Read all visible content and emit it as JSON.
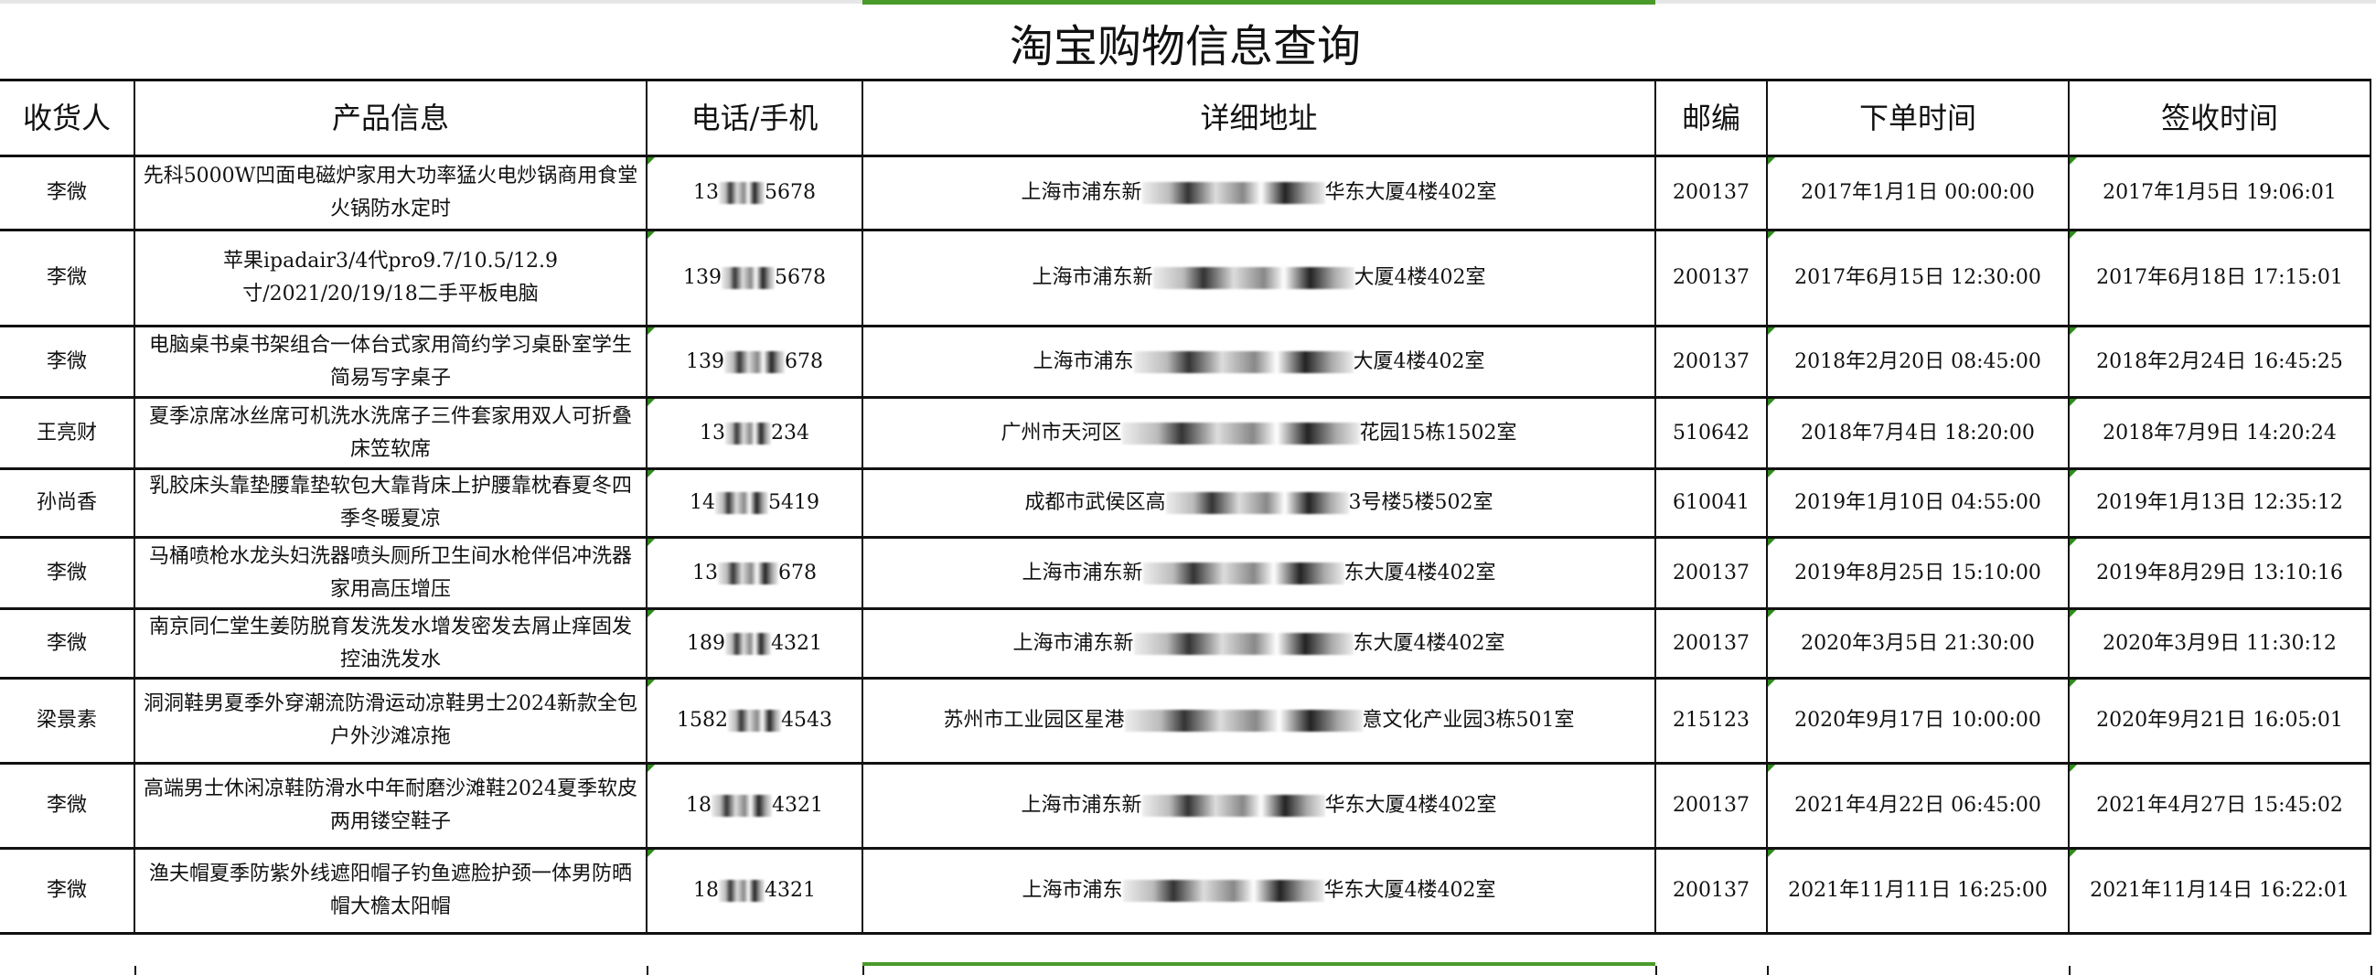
{
  "title": "淘宝购物信息查询",
  "colors": {
    "selection": "#4a9a2a",
    "text_number_indicator": "#2f8a1c",
    "border": "#111111"
  },
  "headers": [
    "收货人",
    "产品信息",
    "电话/手机",
    "详细地址",
    "邮编",
    "下单时间",
    "签收时间"
  ],
  "rows": [
    {
      "name": "李微",
      "product": "先科5000W凹面电磁炉家用大功率猛火电炒锅商用食堂火锅防水定时",
      "phone_start": "13",
      "phone_end": "5678",
      "addr_start": "上海市浦东新",
      "addr_end": "华东大厦4楼402室",
      "zip": "200137",
      "order_time": "2017年1月1日 00:00:00",
      "sign_time": "2017年1月5日 19:06:01"
    },
    {
      "name": "李微",
      "product": "苹果ipadair3/4代pro9.7/10.5/12.9寸/2021/20/19/18二手平板电脑",
      "phone_start": "139",
      "phone_end": "5678",
      "addr_start": "上海市浦东新",
      "addr_end": "大厦4楼402室",
      "zip": "200137",
      "order_time": "2017年6月15日 12:30:00",
      "sign_time": "2017年6月18日 17:15:01"
    },
    {
      "name": "李微",
      "product": "电脑桌书桌书架组合一体台式家用简约学习桌卧室学生简易写字桌子",
      "phone_start": "139",
      "phone_end": "678",
      "addr_start": "上海市浦东",
      "addr_end": "大厦4楼402室",
      "zip": "200137",
      "order_time": "2018年2月20日 08:45:00",
      "sign_time": "2018年2月24日 16:45:25"
    },
    {
      "name": "王亮财",
      "product": "夏季凉席冰丝席可机洗水洗席子三件套家用双人可折叠床笠软席",
      "phone_start": "13",
      "phone_end": "234",
      "addr_start": "广州市天河区",
      "addr_end": "花园15栋1502室",
      "zip": "510642",
      "order_time": "2018年7月4日 18:20:00",
      "sign_time": "2018年7月9日 14:20:24"
    },
    {
      "name": "孙尚香",
      "product": "乳胶床头靠垫腰靠垫软包大靠背床上护腰靠枕春夏冬四季冬暖夏凉",
      "phone_start": "14",
      "phone_end": "5419",
      "addr_start": "成都市武侯区高",
      "addr_end": "3号楼5楼502室",
      "zip": "610041",
      "order_time": "2019年1月10日 04:55:00",
      "sign_time": "2019年1月13日 12:35:12"
    },
    {
      "name": "李微",
      "product": "马桶喷枪水龙头妇洗器喷头厕所卫生间水枪伴侣冲洗器家用高压增压",
      "phone_start": "13",
      "phone_end": "678",
      "addr_start": "上海市浦东新",
      "addr_end": "东大厦4楼402室",
      "zip": "200137",
      "order_time": "2019年8月25日 15:10:00",
      "sign_time": "2019年8月29日 13:10:16"
    },
    {
      "name": "李微",
      "product": "南京同仁堂生姜防脱育发洗发水增发密发去屑止痒固发控油洗发水",
      "phone_start": "189",
      "phone_end": "4321",
      "addr_start": "上海市浦东新",
      "addr_end": "东大厦4楼402室",
      "zip": "200137",
      "order_time": "2020年3月5日 21:30:00",
      "sign_time": "2020年3月9日 11:30:12"
    },
    {
      "name": "梁景素",
      "product": "洞洞鞋男夏季外穿潮流防滑运动凉鞋男士2024新款全包户外沙滩凉拖",
      "phone_start": "1582",
      "phone_end": "4543",
      "addr_start": "苏州市工业园区星港",
      "addr_end": "意文化产业园3栋501室",
      "zip": "215123",
      "order_time": "2020年9月17日 10:00:00",
      "sign_time": "2020年9月21日 16:05:01"
    },
    {
      "name": "李微",
      "product": "高端男士休闲凉鞋防滑水中年耐磨沙滩鞋2024夏季软皮两用镂空鞋子",
      "phone_start": "18",
      "phone_end": "4321",
      "addr_start": "上海市浦东新",
      "addr_end": "华东大厦4楼402室",
      "zip": "200137",
      "order_time": "2021年4月22日 06:45:00",
      "sign_time": "2021年4月27日 15:45:02"
    },
    {
      "name": "李微",
      "product": "渔夫帽夏季防紫外线遮阳帽子钓鱼遮脸护颈一体男防晒帽大檐太阳帽",
      "phone_start": "18",
      "phone_end": "4321",
      "addr_start": "上海市浦东",
      "addr_end": "华东大厦4楼402室",
      "zip": "200137",
      "order_time": "2021年11月11日 16:25:00",
      "sign_time": "2021年11月14日 16:22:01"
    }
  ]
}
